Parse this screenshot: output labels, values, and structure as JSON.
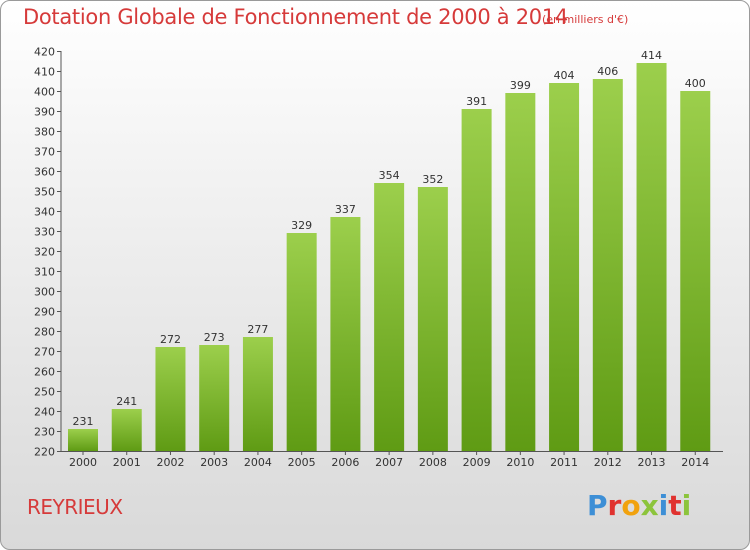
{
  "header": {
    "title": "Dotation Globale de Fonctionnement de 2000 à 2014",
    "unit": "(en milliers d'€)"
  },
  "footer": {
    "place": "REYRIEUX",
    "brand": "Proxiti"
  },
  "colors": {
    "title": "#d63a3a",
    "bar_top": "#9ccf4c",
    "bar_bottom": "#5f9b14",
    "logo": [
      "#3d8fd6",
      "#e0322f",
      "#f1a20e",
      "#8cc43c",
      "#3d8fd6",
      "#e0322f",
      "#8cc43c"
    ]
  },
  "chart_data": {
    "type": "bar",
    "title": "Dotation Globale de Fonctionnement de 2000 à 2014",
    "xlabel": "",
    "ylabel": "",
    "ylim": [
      220,
      420
    ],
    "ytick_step": 10,
    "grid": false,
    "categories": [
      "2000",
      "2001",
      "2002",
      "2003",
      "2004",
      "2005",
      "2006",
      "2007",
      "2008",
      "2009",
      "2010",
      "2011",
      "2012",
      "2013",
      "2014"
    ],
    "values": [
      231,
      241,
      272,
      273,
      277,
      329,
      337,
      354,
      352,
      391,
      399,
      404,
      406,
      414,
      400
    ]
  }
}
